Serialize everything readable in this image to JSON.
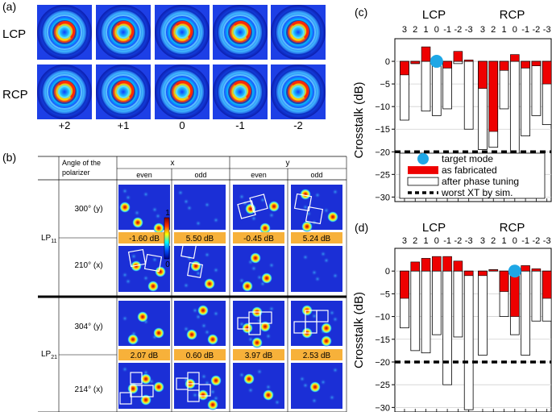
{
  "panel_a": {
    "label": "(a)",
    "rows": [
      "LCP",
      "RCP"
    ],
    "cols": [
      "+2",
      "+1",
      "0",
      "-1",
      "-2"
    ]
  },
  "panel_b": {
    "label": "(b)",
    "header_angle": [
      "Angle of the",
      "polarizer"
    ],
    "header_x": "x",
    "header_y": "y",
    "sub_even": "even",
    "sub_odd": "odd",
    "lp11_label": "LP",
    "lp11_sub": "11",
    "lp21_label": "LP",
    "lp21_sub": "21",
    "angles": [
      "300° (y)",
      "210° (x)",
      "304° (y)",
      "214° (x)"
    ],
    "values_lp11": [
      "-1.60 dB",
      "5.50 dB",
      "-0.45 dB",
      "5.24 dB"
    ],
    "values_lp21": [
      "2.07 dB",
      "0.60 dB",
      "3.97 dB",
      "2.53 dB"
    ],
    "colorbar_max": "1",
    "colorbar_min": "0"
  },
  "chart_data": [
    {
      "panel": "(c)",
      "type": "bar",
      "group_labels": [
        "LCP",
        "RCP"
      ],
      "categories": [
        "3",
        "2",
        "1",
        "0",
        "-1",
        "-2",
        "-3",
        "3",
        "2",
        "1",
        "0",
        "-1",
        "-2",
        "-3"
      ],
      "categories_display": [
        "3 2 1 0-1-2-3",
        "3 2 1 0-1-2-3"
      ],
      "ylabel": "Crosstalk (dB)",
      "ylim": [
        -31,
        5
      ],
      "yticks": [
        0,
        -5,
        -10,
        -15,
        -20,
        -25,
        -30
      ],
      "target_mode_index": 3,
      "series": [
        {
          "name": "as fabricated",
          "values": [
            -3,
            -0.5,
            3.2,
            -1,
            -1.5,
            2.2,
            0.3,
            -6,
            -15.5,
            -2,
            1.5,
            -1.5,
            -1,
            -5
          ]
        },
        {
          "name": "after phase tuning",
          "values": [
            -13,
            -0.5,
            -11,
            -12,
            -10.5,
            -0.5,
            -15,
            -19.5,
            -19,
            -10.5,
            -21.5,
            -16.5,
            -12,
            -14
          ]
        }
      ],
      "reference_line": {
        "name": "worst XT by sim.",
        "value": -20
      },
      "legend": [
        "target mode",
        "as fabricated",
        "after phase tuning",
        "worst XT by sim."
      ]
    },
    {
      "panel": "(d)",
      "type": "bar",
      "group_labels": [
        "LCP",
        "RCP"
      ],
      "categories": [
        "3",
        "2",
        "1",
        "0",
        "-1",
        "-2",
        "-3",
        "3",
        "2",
        "1",
        "0",
        "-1",
        "-2",
        "-3"
      ],
      "categories_display": [
        "3 2 1 0-1-2-3",
        "3 2 1 0-1-2-3"
      ],
      "ylabel": "Crosstalk (dB)",
      "ylim": [
        -31,
        5
      ],
      "yticks": [
        0,
        -5,
        -10,
        -15,
        -20,
        -25,
        -30
      ],
      "target_mode_index": 10,
      "series": [
        {
          "name": "as fabricated",
          "values": [
            -6,
            2,
            2.8,
            3.2,
            3.2,
            2.2,
            -1,
            -1,
            0.3,
            -4.5,
            -10,
            1.2,
            0.5,
            -6
          ]
        },
        {
          "name": "after phase tuning",
          "values": [
            -12.5,
            -17.5,
            -18,
            -14,
            -25,
            -14.5,
            -30.5,
            -18.5,
            0.3,
            -10,
            -14,
            -18.5,
            -11,
            -11
          ]
        }
      ],
      "reference_line": {
        "name": "worst XT by sim.",
        "value": -20
      }
    }
  ]
}
